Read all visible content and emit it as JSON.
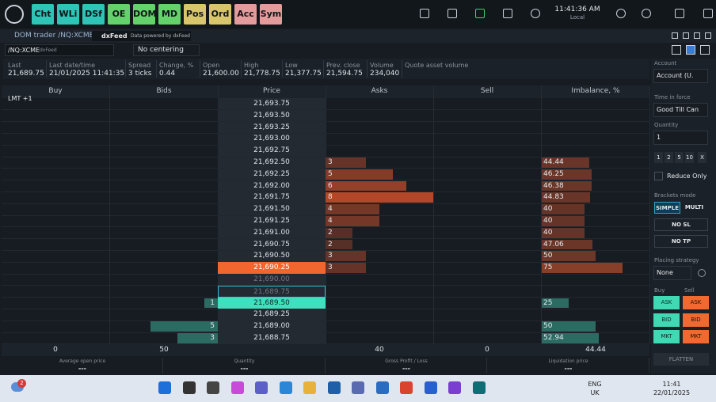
{
  "toolbar": {
    "buttons": [
      {
        "label": "Cht",
        "color": "#2ec4b6"
      },
      {
        "label": "WLi",
        "color": "#2ec4b6"
      },
      {
        "label": "DSf",
        "color": "#2ec4b6"
      },
      {
        "label": "OE",
        "color": "#63d26a"
      },
      {
        "label": "DOM",
        "color": "#63d26a"
      },
      {
        "label": "MD",
        "color": "#63d26a"
      },
      {
        "label": "Pos",
        "color": "#d8c56c"
      },
      {
        "label": "Ord",
        "color": "#d8c56c"
      },
      {
        "label": "Acc",
        "color": "#e49b9b"
      },
      {
        "label": "Sym",
        "color": "#e49b9b"
      }
    ],
    "clock": "11:41:36 AM",
    "timezone": "Local"
  },
  "panel": {
    "title": "DOM trader /NQ:XCME",
    "feed": "dxFeed",
    "feed_note": "Data powered by dxFeed"
  },
  "symbol": {
    "name": "/NQ:XCME",
    "source": "dxFeed",
    "centering": "No centering"
  },
  "stats": [
    {
      "label": "Last",
      "value": "21,689.75"
    },
    {
      "label": "Last date/time",
      "value": "21/01/2025 11:41:35"
    },
    {
      "label": "Spread",
      "value": "3 ticks"
    },
    {
      "label": "Change, %",
      "value": "0.44"
    },
    {
      "label": "Open",
      "value": "21,600.00"
    },
    {
      "label": "High",
      "value": "21,778.75"
    },
    {
      "label": "Low",
      "value": "21,377.75"
    },
    {
      "label": "Prev. close",
      "value": "21,594.75"
    },
    {
      "label": "Volume",
      "value": "234,040"
    },
    {
      "label": "Quote asset volume"
    }
  ],
  "dom": {
    "columns": [
      "Buy",
      "Bids",
      "Price",
      "Asks",
      "Sell",
      "Imbalance, %"
    ],
    "order_tag": "LMT +1",
    "rows": [
      {
        "price": "21,693.75"
      },
      {
        "price": "21,693.50"
      },
      {
        "price": "21,693.25"
      },
      {
        "price": "21,693.00"
      },
      {
        "price": "21,692.75"
      },
      {
        "price": "21,692.50",
        "ask": 3,
        "imbalance": 44.44
      },
      {
        "price": "21,692.25",
        "ask": 5,
        "imbalance": 46.25
      },
      {
        "price": "21,692.00",
        "ask": 6,
        "imbalance": 46.38
      },
      {
        "price": "21,691.75",
        "ask": 8,
        "imbalance": 44.83
      },
      {
        "price": "21,691.50",
        "ask": 4,
        "imbalance": 40
      },
      {
        "price": "21,691.25",
        "ask": 4,
        "imbalance": 40
      },
      {
        "price": "21,691.00",
        "ask": 2,
        "imbalance": 40
      },
      {
        "price": "21,690.75",
        "ask": 2,
        "imbalance": 47.06
      },
      {
        "price": "21,690.50",
        "ask": 3,
        "imbalance": 50
      },
      {
        "price": "21,690.25",
        "ask": 3,
        "imbalance": 75,
        "state": "best-ask"
      },
      {
        "price": "21,690.00",
        "state": "spread"
      },
      {
        "price": "21,689.75",
        "state": "last"
      },
      {
        "price": "21,689.50",
        "bid": 1,
        "imbalance": 25,
        "state": "best-bid"
      },
      {
        "price": "21,689.25"
      },
      {
        "price": "21,689.00",
        "bid": 5,
        "imbalance": 50
      },
      {
        "price": "21,688.75",
        "bid": 3,
        "imbalance": 52.94
      }
    ],
    "totals": {
      "buy": 0,
      "bids": 50,
      "asks": 40,
      "sell": 0,
      "imbalance": 44.44
    }
  },
  "position": [
    {
      "label": "Average open price",
      "value": "---"
    },
    {
      "label": "Quantity",
      "value": "---"
    },
    {
      "label": "Gross Profit / Loss",
      "value": "---"
    },
    {
      "label": "Liquidation price",
      "value": "---"
    }
  ],
  "order_entry": {
    "account_label": "Account",
    "account": "Account (U.",
    "tif_label": "Time in force",
    "tif": "Good Till Can",
    "quantity_label": "Quantity",
    "quantity": 1,
    "quick_quantities": [
      1,
      2,
      5,
      10
    ],
    "clear": "X",
    "reduce_only": "Reduce Only",
    "brackets_label": "Brackets mode",
    "brackets": [
      "SIMPLE",
      "MULTI"
    ],
    "stop_loss": "NO SL",
    "take_profit": "NO TP",
    "strategy_label": "Placing strategy",
    "strategy": "None",
    "buy": "Buy",
    "sell": "Sell",
    "buttons": [
      "ASK",
      "BID",
      "MKT"
    ],
    "flatten": "FLATTEN"
  },
  "taskbar": {
    "badge": "2",
    "language": "ENG",
    "region": "UK",
    "time": "11:41",
    "date": "22/01/2025"
  }
}
